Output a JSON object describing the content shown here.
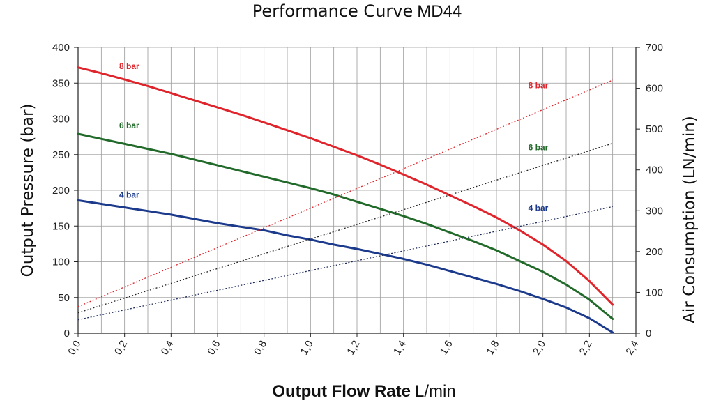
{
  "chart_data": {
    "type": "line",
    "title_main": "Performance Curve",
    "title_model": "MD44",
    "xlabel_main": "Output Flow Rate",
    "xlabel_unit": "L/min",
    "ylabel_left": "Output Pressure (bar)",
    "ylabel_right": "Air Consumption (LN/min)",
    "xlim": [
      0,
      2.4
    ],
    "ylim_left": [
      0,
      400
    ],
    "ylim_right": [
      0,
      700
    ],
    "x_ticks": [
      "0,0",
      "0,2",
      "0,4",
      "0,6",
      "0,8",
      "1,0",
      "1,2",
      "1,4",
      "1,6",
      "1,8",
      "2,0",
      "2,2",
      "2,4"
    ],
    "y_left_ticks": [
      "0",
      "50",
      "100",
      "150",
      "200",
      "250",
      "300",
      "350",
      "400"
    ],
    "y_right_ticks": [
      "0",
      "100",
      "200",
      "300",
      "400",
      "500",
      "600",
      "700"
    ],
    "grid": true,
    "series": [
      {
        "name": "8 bar",
        "axis": "left",
        "style": "solid",
        "color": "#e0242b",
        "x": [
          0,
          0.1,
          0.2,
          0.3,
          0.4,
          0.5,
          0.6,
          0.7,
          0.8,
          0.9,
          1.0,
          1.1,
          1.2,
          1.3,
          1.4,
          1.5,
          1.6,
          1.7,
          1.8,
          1.9,
          2.0,
          2.1,
          2.2,
          2.3
        ],
        "y": [
          372,
          364,
          355,
          346,
          336,
          326,
          316,
          306,
          295,
          284,
          273,
          261,
          249,
          236,
          222,
          208,
          193,
          178,
          162,
          144,
          124,
          101,
          73,
          40
        ]
      },
      {
        "name": "6 bar",
        "axis": "left",
        "style": "solid",
        "color": "#226a2a",
        "x": [
          0,
          0.1,
          0.2,
          0.3,
          0.4,
          0.5,
          0.6,
          0.7,
          0.8,
          0.9,
          1.0,
          1.1,
          1.2,
          1.3,
          1.4,
          1.5,
          1.6,
          1.7,
          1.8,
          1.9,
          2.0,
          2.1,
          2.2,
          2.3
        ],
        "y": [
          279,
          272,
          265,
          258,
          251,
          243,
          235,
          227,
          219,
          211,
          203,
          194,
          184,
          174,
          164,
          153,
          141,
          129,
          116,
          101,
          86,
          68,
          47,
          20
        ]
      },
      {
        "name": "4 bar",
        "axis": "left",
        "style": "solid",
        "color": "#1c3a8c",
        "x": [
          0,
          0.1,
          0.2,
          0.3,
          0.4,
          0.5,
          0.6,
          0.7,
          0.8,
          0.9,
          1.0,
          1.1,
          1.2,
          1.3,
          1.4,
          1.5,
          1.6,
          1.7,
          1.8,
          1.9,
          2.0,
          2.1,
          2.2,
          2.3
        ],
        "y": [
          186,
          181,
          176,
          171,
          166,
          160,
          154,
          149,
          144,
          137,
          131,
          124,
          118,
          111,
          104,
          96,
          87,
          78,
          69,
          59,
          48,
          36,
          21,
          1
        ]
      },
      {
        "name": "8 bar",
        "axis": "right",
        "style": "dotted",
        "color": "#e0242b",
        "x": [
          0,
          2.3
        ],
        "y": [
          65,
          620
        ]
      },
      {
        "name": "6 bar",
        "axis": "right",
        "style": "dotted",
        "color": "#222222",
        "x": [
          0,
          2.3
        ],
        "y": [
          50,
          465
        ]
      },
      {
        "name": "4 bar",
        "axis": "right",
        "style": "dotted",
        "color": "#1c2a5a",
        "x": [
          0,
          2.3
        ],
        "y": [
          33,
          310
        ]
      }
    ],
    "annotations": [
      {
        "text": "8 bar",
        "x": 0.22,
        "y": 370,
        "axis": "left",
        "color": "#e0242b"
      },
      {
        "text": "6 bar",
        "x": 0.22,
        "y": 287,
        "axis": "left",
        "color": "#226a2a"
      },
      {
        "text": "4 bar",
        "x": 0.22,
        "y": 190,
        "axis": "left",
        "color": "#1c3a8c"
      },
      {
        "text": "8 bar",
        "x": 1.98,
        "y": 600,
        "axis": "right",
        "color": "#e0242b"
      },
      {
        "text": "6 bar",
        "x": 1.98,
        "y": 448,
        "axis": "right",
        "color": "#226a2a"
      },
      {
        "text": "4 bar",
        "x": 1.98,
        "y": 300,
        "axis": "right",
        "color": "#1c3a8c"
      }
    ]
  }
}
